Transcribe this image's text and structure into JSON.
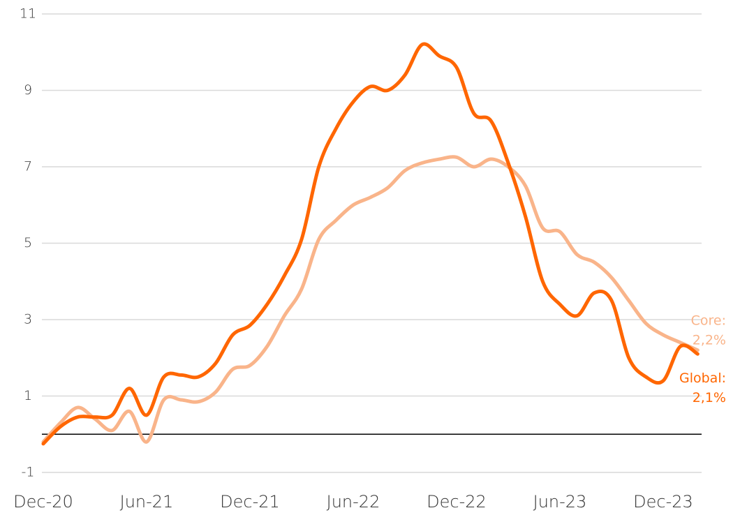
{
  "chart_data": {
    "type": "line",
    "categories": [
      "Dec-20",
      null,
      null,
      null,
      null,
      null,
      "Jun-21",
      null,
      null,
      null,
      null,
      null,
      "Dec-21",
      null,
      null,
      null,
      null,
      null,
      "Jun-22",
      null,
      null,
      null,
      null,
      null,
      "Dec-22",
      null,
      null,
      null,
      null,
      null,
      "Jun-23",
      null,
      null,
      null,
      null,
      null,
      "Dec-23",
      null,
      null
    ],
    "series": [
      {
        "name": "Core",
        "color": "#f9b48a",
        "end_label": [
          "Core:",
          "2,2%"
        ],
        "values": [
          -0.2,
          0.3,
          0.7,
          0.4,
          0.1,
          0.6,
          -0.2,
          0.9,
          0.9,
          0.85,
          1.1,
          1.7,
          1.8,
          2.3,
          3.1,
          3.8,
          5.1,
          5.6,
          6.0,
          6.2,
          6.45,
          6.9,
          7.1,
          7.2,
          7.25,
          7.0,
          7.2,
          7.0,
          6.5,
          5.4,
          5.3,
          4.7,
          4.5,
          4.1,
          3.5,
          2.9,
          2.6,
          2.4,
          2.2
        ]
      },
      {
        "name": "Global",
        "color": "#ff6600",
        "end_label": [
          "Global:",
          "2,1%"
        ],
        "values": [
          -0.25,
          0.2,
          0.45,
          0.45,
          0.5,
          1.2,
          0.5,
          1.5,
          1.55,
          1.5,
          1.85,
          2.6,
          2.85,
          3.4,
          4.15,
          5.1,
          7.0,
          8.0,
          8.7,
          9.1,
          9.0,
          9.4,
          10.2,
          9.9,
          9.6,
          8.4,
          8.2,
          7.1,
          5.7,
          4.0,
          3.4,
          3.1,
          3.7,
          3.5,
          2.0,
          1.5,
          1.4,
          2.3,
          2.1
        ]
      }
    ],
    "ylim": [
      -1,
      11
    ],
    "yticks": [
      -1,
      1,
      3,
      5,
      7,
      9,
      11
    ],
    "grid": true,
    "zero_line": true
  }
}
